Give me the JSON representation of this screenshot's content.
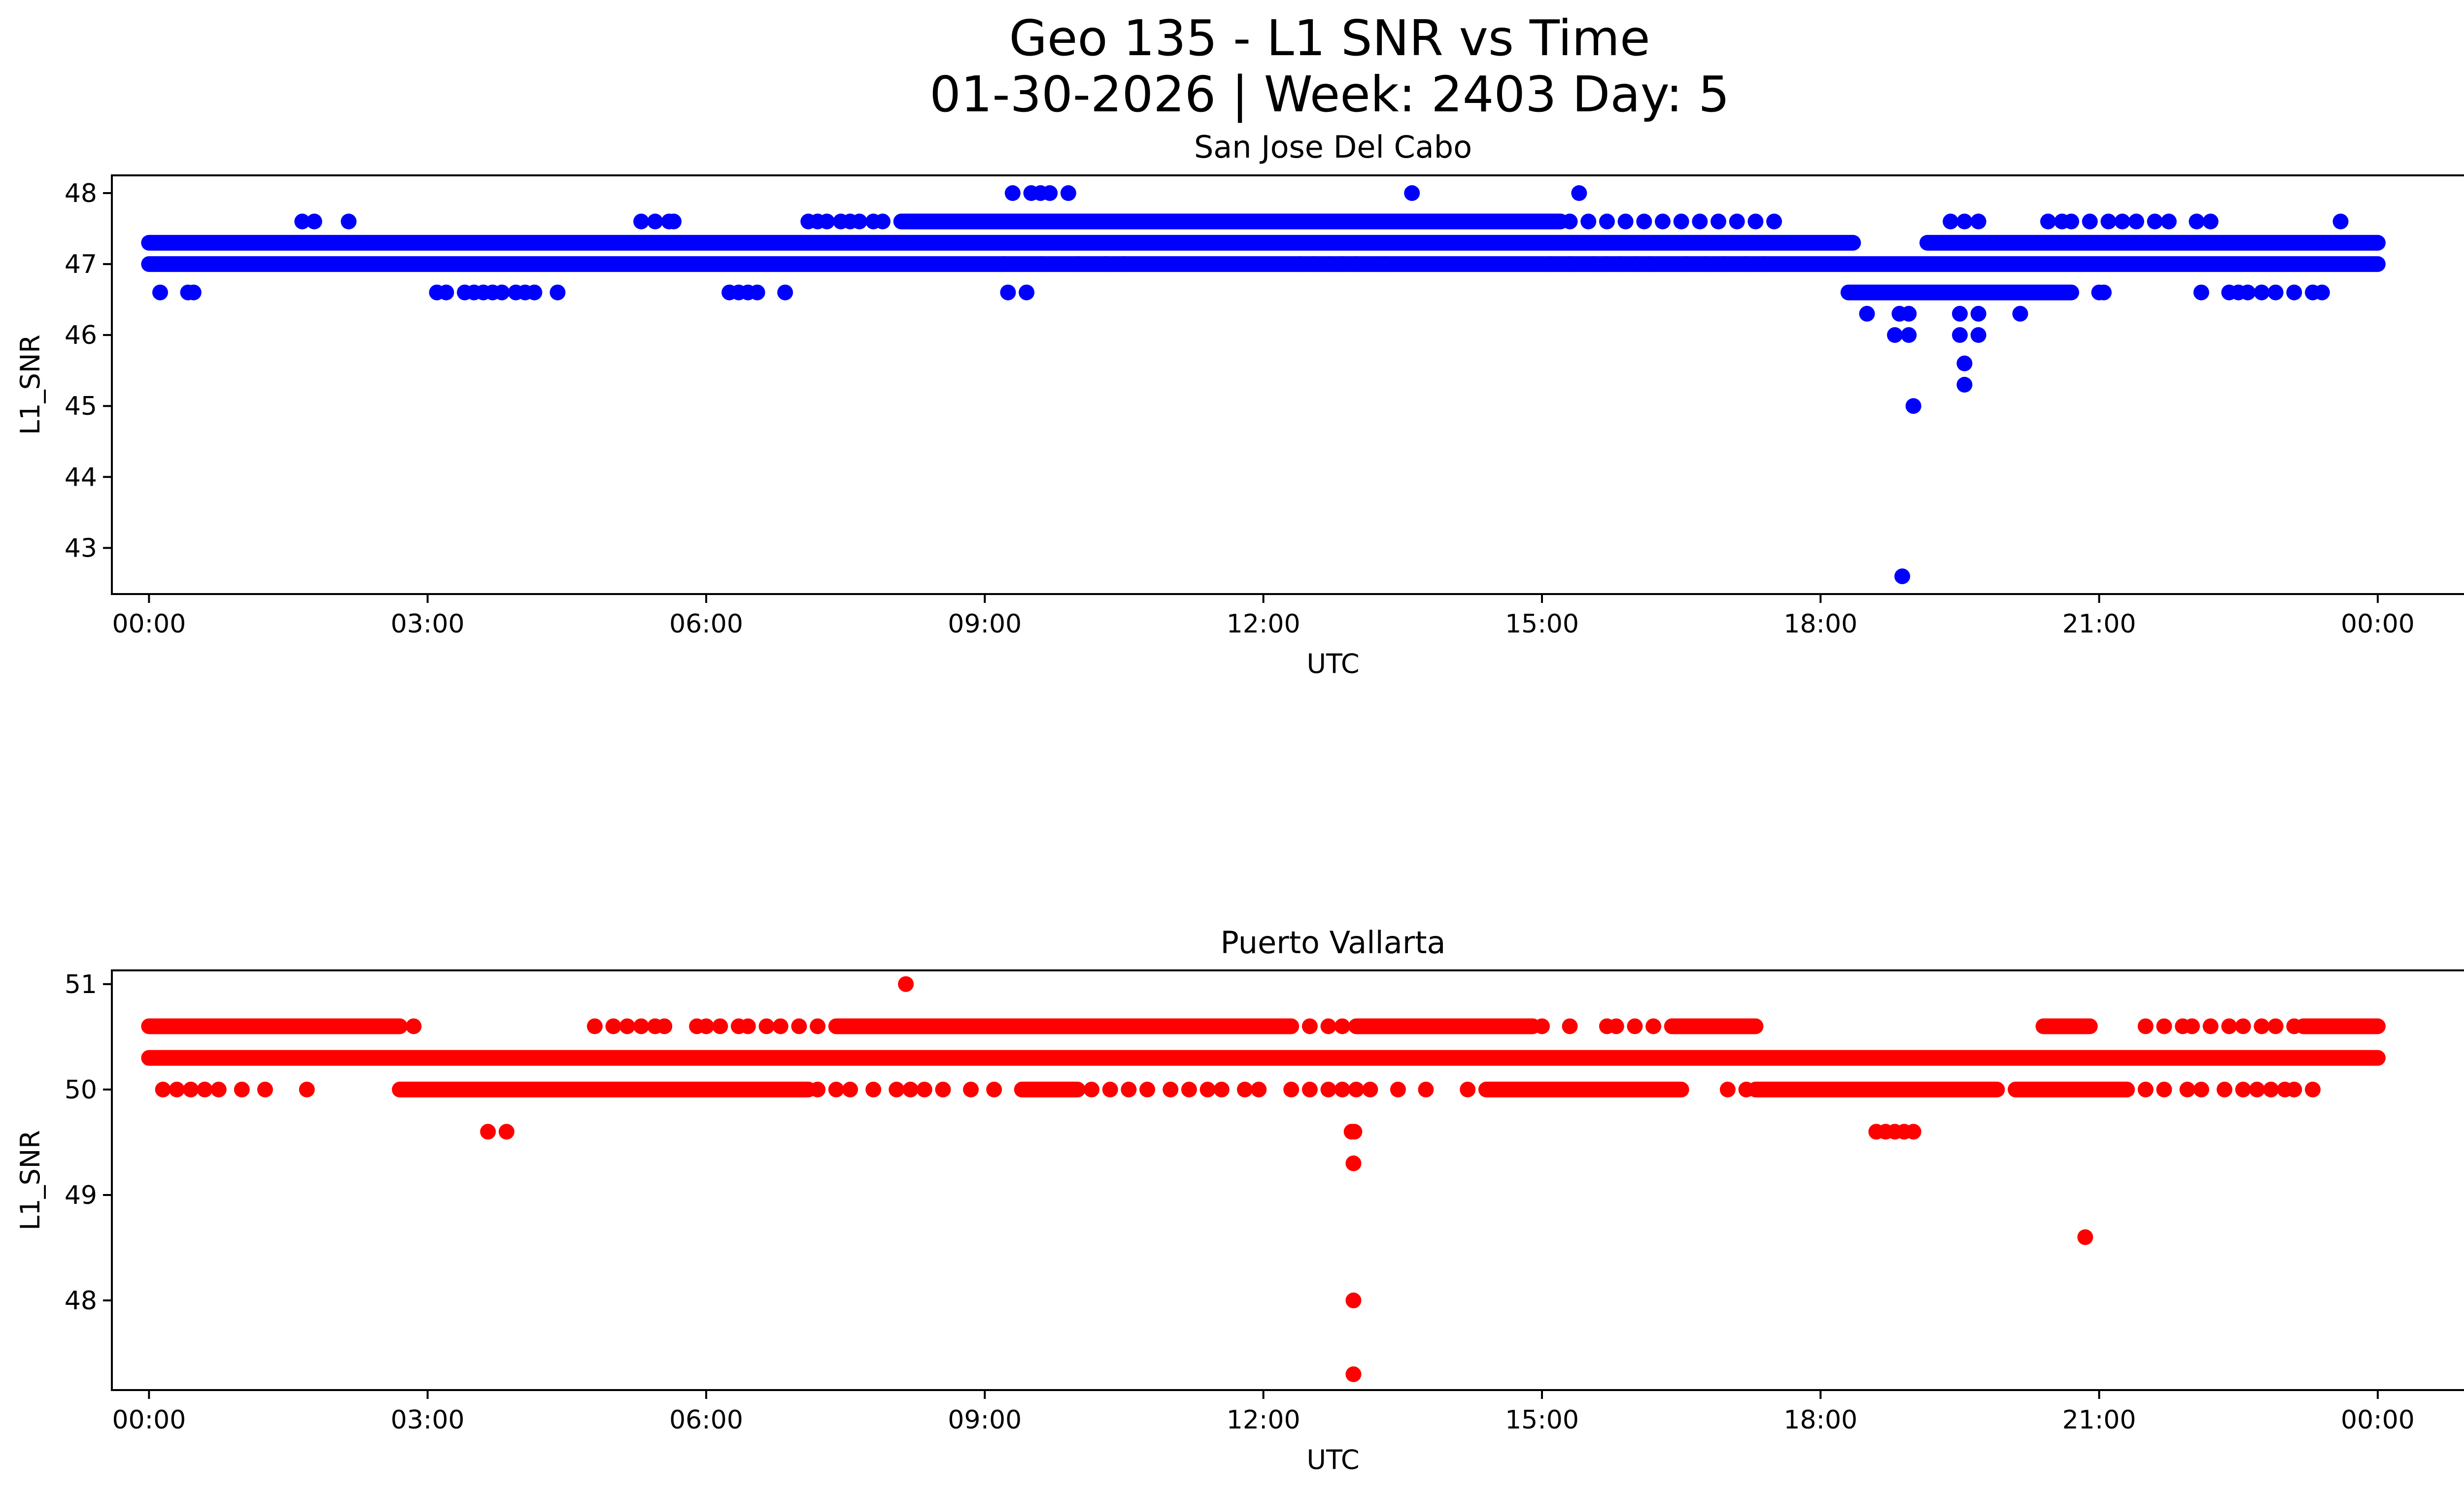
{
  "figure": {
    "title_line1": "Geo 135 - L1 SNR vs Time",
    "title_line2": "01-30-2026 | Week: 2403 Day: 5"
  },
  "chart_data": [
    {
      "type": "scatter",
      "title": "San Jose Del Cabo",
      "xlabel": "UTC",
      "ylabel": "L1_SNR",
      "xlim_hours": [
        -0.4,
        25.9
      ],
      "ylim": [
        42.35,
        48.25
      ],
      "xticks": [
        {
          "h": 0,
          "label": "00:00"
        },
        {
          "h": 3,
          "label": "03:00"
        },
        {
          "h": 6,
          "label": "06:00"
        },
        {
          "h": 9,
          "label": "09:00"
        },
        {
          "h": 12,
          "label": "12:00"
        },
        {
          "h": 15,
          "label": "15:00"
        },
        {
          "h": 18,
          "label": "18:00"
        },
        {
          "h": 21,
          "label": "21:00"
        },
        {
          "h": 24,
          "label": "00:00"
        }
      ],
      "yticks": [
        {
          "v": 43,
          "label": "43"
        },
        {
          "v": 44,
          "label": "44"
        },
        {
          "v": 45,
          "label": "45"
        },
        {
          "v": 46,
          "label": "46"
        },
        {
          "v": 47,
          "label": "47"
        },
        {
          "v": 48,
          "label": "48"
        }
      ],
      "color": "#0000ff",
      "bands": [
        {
          "y": 47.3,
          "segments": [
            [
              0.0,
              18.35
            ],
            [
              19.15,
              24.0
            ]
          ]
        },
        {
          "y": 47.0,
          "segments": [
            [
              0.0,
              24.0
            ]
          ]
        },
        {
          "y": 46.6,
          "segments": [
            [
              18.3,
              20.7
            ]
          ]
        },
        {
          "y": 47.6,
          "segments": [
            [
              8.1,
              15.2
            ]
          ]
        }
      ],
      "points": [
        [
          0.12,
          46.6
        ],
        [
          0.42,
          46.6
        ],
        [
          0.48,
          46.6
        ],
        [
          1.65,
          47.6
        ],
        [
          1.78,
          47.6
        ],
        [
          2.15,
          47.6
        ],
        [
          3.1,
          46.6
        ],
        [
          3.2,
          46.6
        ],
        [
          3.4,
          46.6
        ],
        [
          3.5,
          46.6
        ],
        [
          3.6,
          46.6
        ],
        [
          3.7,
          46.6
        ],
        [
          3.8,
          46.6
        ],
        [
          3.95,
          46.6
        ],
        [
          4.05,
          46.6
        ],
        [
          4.15,
          46.6
        ],
        [
          4.4,
          46.6
        ],
        [
          5.3,
          47.6
        ],
        [
          5.45,
          47.6
        ],
        [
          5.6,
          47.6
        ],
        [
          5.65,
          47.6
        ],
        [
          6.25,
          46.6
        ],
        [
          6.35,
          46.6
        ],
        [
          6.45,
          46.6
        ],
        [
          6.55,
          46.6
        ],
        [
          6.85,
          46.6
        ],
        [
          7.1,
          47.6
        ],
        [
          7.2,
          47.6
        ],
        [
          7.3,
          47.6
        ],
        [
          7.45,
          47.6
        ],
        [
          7.55,
          47.6
        ],
        [
          7.65,
          47.6
        ],
        [
          7.8,
          47.6
        ],
        [
          7.9,
          47.6
        ],
        [
          9.25,
          46.6
        ],
        [
          9.45,
          46.6
        ],
        [
          9.3,
          48.0
        ],
        [
          9.5,
          48.0
        ],
        [
          9.6,
          48.0
        ],
        [
          9.7,
          48.0
        ],
        [
          9.9,
          48.0
        ],
        [
          9.2,
          47.0
        ],
        [
          9.6,
          47.0
        ],
        [
          10.0,
          47.0
        ],
        [
          10.3,
          47.0
        ],
        [
          10.5,
          47.0
        ],
        [
          12.4,
          47.0
        ],
        [
          12.55,
          47.0
        ],
        [
          12.7,
          47.0
        ],
        [
          12.85,
          47.0
        ],
        [
          13.0,
          47.0
        ],
        [
          13.3,
          47.0
        ],
        [
          13.6,
          48.0
        ],
        [
          15.4,
          48.0
        ],
        [
          15.1,
          47.0
        ],
        [
          15.3,
          47.0
        ],
        [
          15.55,
          47.0
        ],
        [
          15.7,
          47.0
        ],
        [
          15.85,
          47.0
        ],
        [
          16.0,
          47.0
        ],
        [
          16.15,
          47.0
        ],
        [
          15.3,
          47.6
        ],
        [
          15.5,
          47.6
        ],
        [
          15.7,
          47.6
        ],
        [
          15.9,
          47.6
        ],
        [
          16.1,
          47.6
        ],
        [
          16.3,
          47.6
        ],
        [
          16.5,
          47.6
        ],
        [
          16.7,
          47.6
        ],
        [
          16.9,
          47.6
        ],
        [
          17.1,
          47.6
        ],
        [
          17.3,
          47.6
        ],
        [
          17.5,
          47.6
        ],
        [
          16.55,
          47.0
        ],
        [
          16.75,
          47.0
        ],
        [
          16.95,
          47.0
        ],
        [
          17.2,
          47.0
        ],
        [
          17.4,
          47.0
        ],
        [
          18.5,
          46.3
        ],
        [
          18.8,
          46.0
        ],
        [
          18.85,
          46.3
        ],
        [
          18.95,
          46.3
        ],
        [
          18.95,
          46.0
        ],
        [
          18.88,
          42.6
        ],
        [
          19.0,
          45.0
        ],
        [
          19.5,
          46.3
        ],
        [
          19.5,
          46.0
        ],
        [
          19.55,
          45.6
        ],
        [
          19.55,
          45.3
        ],
        [
          19.7,
          46.3
        ],
        [
          19.7,
          46.0
        ],
        [
          20.15,
          46.3
        ],
        [
          19.4,
          47.6
        ],
        [
          19.55,
          47.6
        ],
        [
          19.7,
          47.6
        ],
        [
          20.45,
          47.6
        ],
        [
          20.6,
          47.6
        ],
        [
          20.7,
          47.6
        ],
        [
          21.0,
          46.6
        ],
        [
          21.05,
          46.6
        ],
        [
          20.9,
          47.6
        ],
        [
          21.1,
          47.6
        ],
        [
          21.25,
          47.6
        ],
        [
          21.4,
          47.6
        ],
        [
          21.6,
          47.6
        ],
        [
          21.75,
          47.6
        ],
        [
          22.05,
          47.6
        ],
        [
          22.2,
          47.6
        ],
        [
          22.1,
          46.6
        ],
        [
          22.4,
          46.6
        ],
        [
          22.5,
          46.6
        ],
        [
          22.6,
          46.6
        ],
        [
          22.75,
          46.6
        ],
        [
          22.9,
          46.6
        ],
        [
          23.1,
          46.6
        ],
        [
          23.3,
          46.6
        ],
        [
          23.4,
          46.6
        ],
        [
          23.6,
          47.6
        ]
      ]
    },
    {
      "type": "scatter",
      "title": "Puerto Vallarta",
      "xlabel": "UTC",
      "ylabel": "L1_SNR",
      "xlim_hours": [
        -0.4,
        25.9
      ],
      "ylim": [
        47.15,
        51.13
      ],
      "xticks": [
        {
          "h": 0,
          "label": "00:00"
        },
        {
          "h": 3,
          "label": "03:00"
        },
        {
          "h": 6,
          "label": "06:00"
        },
        {
          "h": 9,
          "label": "09:00"
        },
        {
          "h": 12,
          "label": "12:00"
        },
        {
          "h": 15,
          "label": "15:00"
        },
        {
          "h": 18,
          "label": "18:00"
        },
        {
          "h": 21,
          "label": "21:00"
        },
        {
          "h": 24,
          "label": "00:00"
        }
      ],
      "yticks": [
        {
          "v": 48,
          "label": "48"
        },
        {
          "v": 49,
          "label": "49"
        },
        {
          "v": 50,
          "label": "50"
        },
        {
          "v": 51,
          "label": "51"
        }
      ],
      "color": "#ff0000",
      "bands": [
        {
          "y": 50.3,
          "segments": [
            [
              0.0,
              24.0
            ]
          ]
        },
        {
          "y": 50.6,
          "segments": [
            [
              0.0,
              2.7
            ],
            [
              7.4,
              12.3
            ],
            [
              13.0,
              14.9
            ],
            [
              16.4,
              17.3
            ],
            [
              20.4,
              20.9
            ],
            [
              23.2,
              24.0
            ]
          ]
        },
        {
          "y": 50.0,
          "segments": [
            [
              2.7,
              7.1
            ],
            [
              9.4,
              10.0
            ],
            [
              14.4,
              16.5
            ],
            [
              17.3,
              19.9
            ],
            [
              20.1,
              21.3
            ]
          ]
        }
      ],
      "points": [
        [
          0.15,
          50.0
        ],
        [
          0.3,
          50.0
        ],
        [
          0.45,
          50.0
        ],
        [
          0.6,
          50.0
        ],
        [
          0.75,
          50.0
        ],
        [
          1.0,
          50.0
        ],
        [
          1.25,
          50.0
        ],
        [
          1.7,
          50.0
        ],
        [
          0.05,
          50.6
        ],
        [
          0.25,
          50.6
        ],
        [
          0.45,
          50.6
        ],
        [
          2.85,
          50.6
        ],
        [
          3.65,
          49.6
        ],
        [
          3.85,
          49.6
        ],
        [
          4.8,
          50.6
        ],
        [
          5.0,
          50.6
        ],
        [
          5.15,
          50.6
        ],
        [
          5.3,
          50.6
        ],
        [
          5.45,
          50.6
        ],
        [
          5.55,
          50.6
        ],
        [
          5.9,
          50.6
        ],
        [
          6.0,
          50.6
        ],
        [
          6.15,
          50.6
        ],
        [
          6.35,
          50.6
        ],
        [
          6.45,
          50.6
        ],
        [
          6.65,
          50.6
        ],
        [
          6.8,
          50.6
        ],
        [
          7.0,
          50.6
        ],
        [
          7.2,
          50.6
        ],
        [
          7.2,
          50.0
        ],
        [
          7.4,
          50.0
        ],
        [
          7.55,
          50.0
        ],
        [
          7.8,
          50.0
        ],
        [
          8.05,
          50.0
        ],
        [
          8.2,
          50.0
        ],
        [
          8.35,
          50.0
        ],
        [
          8.55,
          50.0
        ],
        [
          8.85,
          50.0
        ],
        [
          9.1,
          50.0
        ],
        [
          8.15,
          51.0
        ],
        [
          10.15,
          50.0
        ],
        [
          10.35,
          50.0
        ],
        [
          10.55,
          50.0
        ],
        [
          10.75,
          50.0
        ],
        [
          11.0,
          50.0
        ],
        [
          11.2,
          50.0
        ],
        [
          11.4,
          50.0
        ],
        [
          11.55,
          50.0
        ],
        [
          11.8,
          50.0
        ],
        [
          11.95,
          50.0
        ],
        [
          12.3,
          50.0
        ],
        [
          12.5,
          50.0
        ],
        [
          12.7,
          50.0
        ],
        [
          12.85,
          50.0
        ],
        [
          13.0,
          50.0
        ],
        [
          13.15,
          50.0
        ],
        [
          13.45,
          50.0
        ],
        [
          13.75,
          50.0
        ],
        [
          14.2,
          50.0
        ],
        [
          12.5,
          50.6
        ],
        [
          12.7,
          50.6
        ],
        [
          12.85,
          50.6
        ],
        [
          12.95,
          49.6
        ],
        [
          12.98,
          49.6
        ],
        [
          12.97,
          49.3
        ],
        [
          12.97,
          48.0
        ],
        [
          12.97,
          47.3
        ],
        [
          15.0,
          50.6
        ],
        [
          15.3,
          50.6
        ],
        [
          15.7,
          50.6
        ],
        [
          15.8,
          50.6
        ],
        [
          16.0,
          50.6
        ],
        [
          16.2,
          50.6
        ],
        [
          16.4,
          50.6
        ],
        [
          17.0,
          50.0
        ],
        [
          17.2,
          50.0
        ],
        [
          18.6,
          49.6
        ],
        [
          18.7,
          49.6
        ],
        [
          18.8,
          49.6
        ],
        [
          18.9,
          49.6
        ],
        [
          19.0,
          49.6
        ],
        [
          20.85,
          48.6
        ],
        [
          21.5,
          50.6
        ],
        [
          21.7,
          50.6
        ],
        [
          21.9,
          50.6
        ],
        [
          22.0,
          50.6
        ],
        [
          22.2,
          50.6
        ],
        [
          22.4,
          50.6
        ],
        [
          22.55,
          50.6
        ],
        [
          22.75,
          50.6
        ],
        [
          22.9,
          50.6
        ],
        [
          23.1,
          50.6
        ],
        [
          21.5,
          50.0
        ],
        [
          21.7,
          50.0
        ],
        [
          21.95,
          50.0
        ],
        [
          22.1,
          50.0
        ],
        [
          22.35,
          50.0
        ],
        [
          22.55,
          50.0
        ],
        [
          22.7,
          50.0
        ],
        [
          22.85,
          50.0
        ],
        [
          23.0,
          50.0
        ],
        [
          23.1,
          50.0
        ],
        [
          23.3,
          50.0
        ]
      ]
    }
  ]
}
